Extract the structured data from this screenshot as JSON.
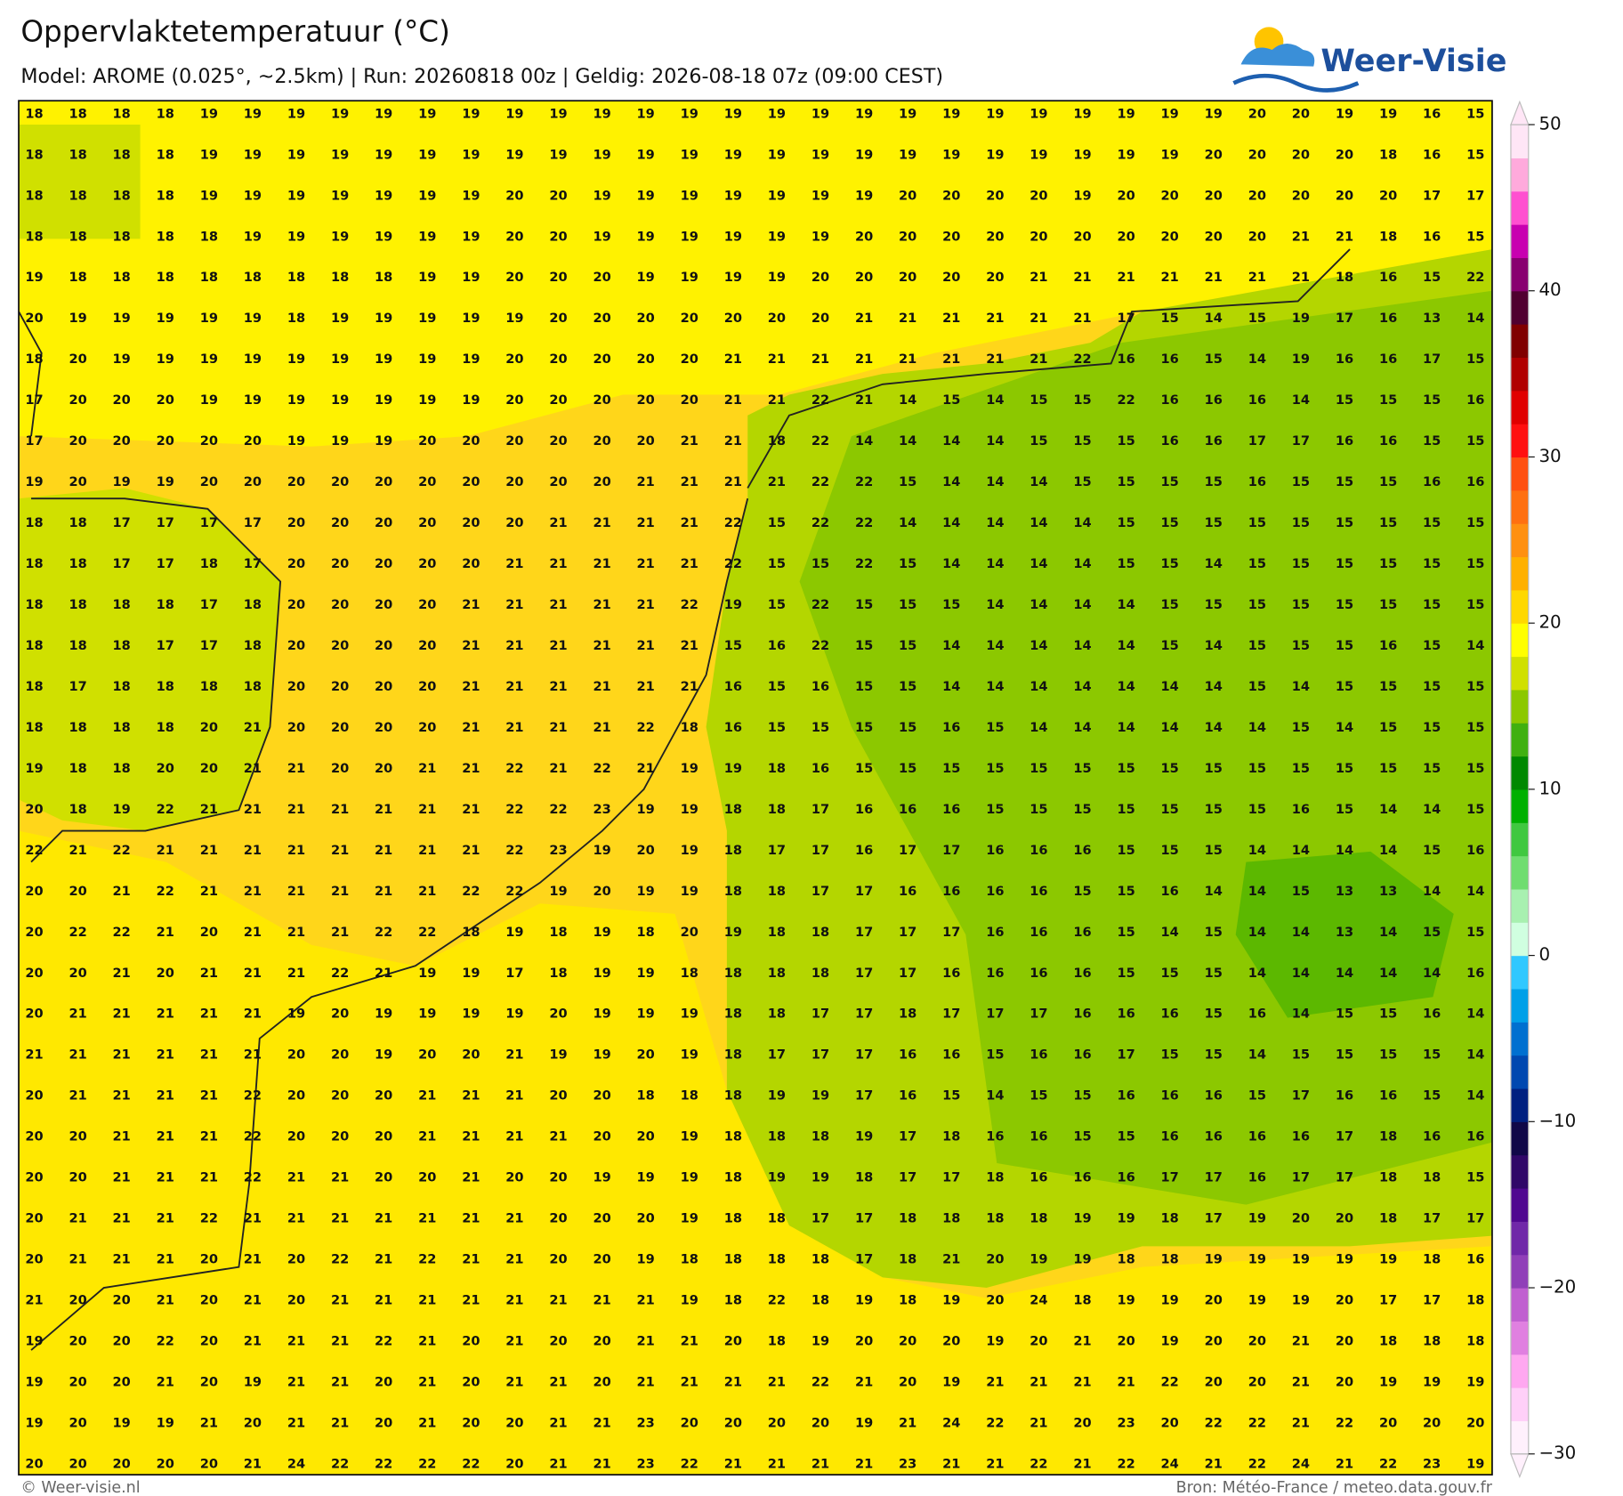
{
  "header": {
    "title": "Oppervlaktetemperatuur (°C)",
    "subtitle": "Model: AROME (0.025°, ~2.5km)  |  Run: 20260818 00z  |  Geldig: 2026-08-18 07z (09:00 CEST)",
    "logo": "Weer-Visie"
  },
  "map": {
    "values": [
      [
        18,
        18,
        18,
        18,
        19,
        19,
        19,
        19,
        19,
        19,
        19,
        19,
        19,
        19,
        19,
        19,
        19,
        19,
        19,
        19,
        19,
        19,
        19,
        19,
        19,
        19,
        19,
        19,
        20,
        20,
        19,
        19,
        16,
        15
      ],
      [
        18,
        18,
        18,
        18,
        19,
        19,
        19,
        19,
        19,
        19,
        19,
        19,
        19,
        19,
        19,
        19,
        19,
        19,
        19,
        19,
        19,
        19,
        19,
        19,
        19,
        19,
        19,
        20,
        20,
        20,
        20,
        18,
        16,
        15
      ],
      [
        18,
        18,
        18,
        18,
        19,
        19,
        19,
        19,
        19,
        19,
        19,
        20,
        20,
        19,
        19,
        19,
        19,
        19,
        19,
        19,
        20,
        20,
        20,
        20,
        19,
        20,
        20,
        20,
        20,
        20,
        20,
        20,
        17,
        17
      ],
      [
        18,
        18,
        18,
        18,
        18,
        19,
        19,
        19,
        19,
        19,
        19,
        20,
        20,
        19,
        19,
        19,
        19,
        19,
        19,
        20,
        20,
        20,
        20,
        20,
        20,
        20,
        20,
        20,
        20,
        21,
        21,
        18,
        16,
        15
      ],
      [
        19,
        18,
        18,
        18,
        18,
        18,
        18,
        18,
        18,
        19,
        19,
        20,
        20,
        20,
        19,
        19,
        19,
        19,
        20,
        20,
        20,
        20,
        20,
        21,
        21,
        21,
        21,
        21,
        21,
        21,
        18,
        16,
        15,
        22
      ],
      [
        20,
        19,
        19,
        19,
        19,
        19,
        18,
        19,
        19,
        19,
        19,
        19,
        20,
        20,
        20,
        20,
        20,
        20,
        20,
        21,
        21,
        21,
        21,
        21,
        21,
        17,
        15,
        14,
        15,
        19,
        17,
        16,
        13,
        14
      ],
      [
        18,
        20,
        19,
        19,
        19,
        19,
        19,
        19,
        19,
        19,
        19,
        20,
        20,
        20,
        20,
        20,
        21,
        21,
        21,
        21,
        21,
        21,
        21,
        21,
        22,
        16,
        16,
        15,
        14,
        19,
        16,
        16,
        17,
        15
      ],
      [
        17,
        20,
        20,
        20,
        19,
        19,
        19,
        19,
        19,
        19,
        19,
        20,
        20,
        20,
        20,
        20,
        21,
        21,
        22,
        21,
        14,
        15,
        14,
        15,
        15,
        22,
        16,
        16,
        16,
        14,
        15,
        15,
        15,
        16
      ],
      [
        17,
        20,
        20,
        20,
        20,
        20,
        19,
        19,
        19,
        20,
        20,
        20,
        20,
        20,
        20,
        21,
        21,
        18,
        22,
        14,
        14,
        14,
        14,
        15,
        15,
        15,
        16,
        16,
        17,
        17,
        16,
        16,
        15,
        15
      ],
      [
        19,
        20,
        19,
        19,
        20,
        20,
        20,
        20,
        20,
        20,
        20,
        20,
        20,
        20,
        21,
        21,
        21,
        21,
        22,
        22,
        15,
        14,
        14,
        14,
        15,
        15,
        15,
        15,
        16,
        15,
        15,
        15,
        16,
        16
      ],
      [
        18,
        18,
        17,
        17,
        17,
        17,
        20,
        20,
        20,
        20,
        20,
        20,
        21,
        21,
        21,
        21,
        22,
        15,
        22,
        22,
        14,
        14,
        14,
        14,
        14,
        15,
        15,
        15,
        15,
        15,
        15,
        15,
        15,
        15
      ],
      [
        18,
        18,
        17,
        17,
        18,
        17,
        20,
        20,
        20,
        20,
        20,
        21,
        21,
        21,
        21,
        21,
        22,
        15,
        15,
        22,
        15,
        14,
        14,
        14,
        14,
        15,
        15,
        14,
        15,
        15,
        15,
        15,
        15,
        15
      ],
      [
        18,
        18,
        18,
        18,
        17,
        18,
        20,
        20,
        20,
        20,
        21,
        21,
        21,
        21,
        21,
        22,
        19,
        15,
        22,
        15,
        15,
        15,
        14,
        14,
        14,
        14,
        15,
        15,
        15,
        15,
        15,
        15,
        15,
        15
      ],
      [
        18,
        18,
        18,
        17,
        17,
        18,
        20,
        20,
        20,
        20,
        21,
        21,
        21,
        21,
        21,
        21,
        15,
        16,
        22,
        15,
        15,
        14,
        14,
        14,
        14,
        14,
        15,
        14,
        15,
        15,
        15,
        16,
        15,
        14
      ],
      [
        18,
        17,
        18,
        18,
        18,
        18,
        20,
        20,
        20,
        20,
        21,
        21,
        21,
        21,
        21,
        21,
        16,
        15,
        16,
        15,
        15,
        14,
        14,
        14,
        14,
        14,
        14,
        14,
        15,
        14,
        15,
        15,
        15,
        15
      ],
      [
        18,
        18,
        18,
        18,
        20,
        21,
        20,
        20,
        20,
        20,
        21,
        21,
        21,
        21,
        22,
        18,
        16,
        15,
        15,
        15,
        15,
        16,
        15,
        14,
        14,
        14,
        14,
        14,
        14,
        15,
        14,
        15,
        15,
        15
      ],
      [
        19,
        18,
        18,
        20,
        20,
        21,
        21,
        20,
        20,
        21,
        21,
        22,
        21,
        22,
        21,
        19,
        19,
        18,
        16,
        15,
        15,
        15,
        15,
        15,
        15,
        15,
        15,
        15,
        15,
        15,
        15,
        15,
        15,
        15
      ],
      [
        20,
        18,
        19,
        22,
        21,
        21,
        21,
        21,
        21,
        21,
        21,
        22,
        22,
        23,
        19,
        19,
        18,
        18,
        17,
        16,
        16,
        16,
        15,
        15,
        15,
        15,
        15,
        15,
        15,
        16,
        15,
        14,
        14,
        15
      ],
      [
        22,
        21,
        22,
        21,
        21,
        21,
        21,
        21,
        21,
        21,
        21,
        22,
        23,
        19,
        20,
        19,
        18,
        17,
        17,
        16,
        17,
        17,
        16,
        16,
        16,
        15,
        15,
        15,
        14,
        14,
        14,
        14,
        15,
        16
      ],
      [
        20,
        20,
        21,
        22,
        21,
        21,
        21,
        21,
        21,
        21,
        22,
        22,
        19,
        20,
        19,
        19,
        18,
        18,
        17,
        17,
        16,
        16,
        16,
        16,
        15,
        15,
        16,
        14,
        14,
        15,
        13,
        13,
        14,
        14
      ],
      [
        20,
        22,
        22,
        21,
        20,
        21,
        21,
        21,
        22,
        22,
        18,
        19,
        18,
        19,
        18,
        20,
        19,
        18,
        18,
        17,
        17,
        17,
        16,
        16,
        16,
        15,
        14,
        15,
        14,
        14,
        13,
        14,
        15,
        15
      ],
      [
        20,
        20,
        21,
        20,
        21,
        21,
        21,
        22,
        21,
        19,
        19,
        17,
        18,
        19,
        19,
        18,
        18,
        18,
        18,
        17,
        17,
        16,
        16,
        16,
        16,
        15,
        15,
        15,
        14,
        14,
        14,
        14,
        14,
        16
      ],
      [
        20,
        21,
        21,
        21,
        21,
        21,
        19,
        20,
        19,
        19,
        19,
        19,
        20,
        19,
        19,
        19,
        18,
        18,
        17,
        17,
        18,
        17,
        17,
        17,
        16,
        16,
        16,
        15,
        16,
        14,
        15,
        15,
        16,
        14
      ],
      [
        21,
        21,
        21,
        21,
        21,
        21,
        20,
        20,
        19,
        20,
        20,
        21,
        19,
        19,
        20,
        19,
        18,
        17,
        17,
        17,
        16,
        16,
        15,
        16,
        16,
        17,
        15,
        15,
        14,
        15,
        15,
        15,
        15,
        14
      ],
      [
        20,
        21,
        21,
        21,
        21,
        22,
        20,
        20,
        20,
        21,
        21,
        21,
        20,
        20,
        18,
        18,
        18,
        19,
        19,
        17,
        16,
        15,
        14,
        15,
        15,
        16,
        16,
        16,
        15,
        17,
        16,
        16,
        15,
        14
      ],
      [
        20,
        20,
        21,
        21,
        21,
        22,
        20,
        20,
        20,
        21,
        21,
        21,
        21,
        20,
        20,
        19,
        18,
        18,
        18,
        19,
        17,
        18,
        16,
        16,
        15,
        15,
        16,
        16,
        16,
        16,
        17,
        18,
        16,
        16
      ],
      [
        20,
        20,
        21,
        21,
        21,
        22,
        21,
        21,
        20,
        20,
        21,
        20,
        20,
        19,
        19,
        19,
        18,
        19,
        19,
        18,
        17,
        17,
        18,
        16,
        16,
        16,
        17,
        17,
        16,
        17,
        17,
        18,
        18,
        15
      ],
      [
        20,
        21,
        21,
        21,
        22,
        21,
        21,
        21,
        21,
        21,
        21,
        21,
        20,
        20,
        20,
        19,
        18,
        18,
        17,
        17,
        18,
        18,
        18,
        18,
        19,
        19,
        18,
        17,
        19,
        20,
        20,
        18,
        17,
        17
      ],
      [
        20,
        21,
        21,
        21,
        20,
        21,
        20,
        22,
        21,
        22,
        21,
        21,
        20,
        20,
        19,
        18,
        18,
        18,
        18,
        17,
        18,
        21,
        20,
        19,
        19,
        18,
        18,
        19,
        19,
        19,
        19,
        19,
        18,
        16
      ],
      [
        21,
        20,
        20,
        21,
        20,
        21,
        20,
        21,
        21,
        21,
        21,
        21,
        21,
        21,
        21,
        19,
        18,
        22,
        18,
        19,
        18,
        19,
        20,
        24,
        18,
        19,
        19,
        20,
        19,
        19,
        20,
        17,
        17,
        18
      ],
      [
        19,
        20,
        20,
        22,
        20,
        21,
        21,
        21,
        22,
        21,
        20,
        21,
        20,
        20,
        21,
        21,
        20,
        18,
        19,
        20,
        20,
        20,
        19,
        20,
        21,
        20,
        19,
        20,
        20,
        21,
        20,
        18,
        18,
        18
      ],
      [
        19,
        20,
        20,
        21,
        20,
        19,
        21,
        21,
        20,
        21,
        20,
        21,
        21,
        20,
        21,
        21,
        21,
        21,
        22,
        21,
        20,
        19,
        21,
        21,
        21,
        21,
        22,
        20,
        20,
        21,
        20,
        19,
        19,
        19
      ],
      [
        19,
        20,
        19,
        19,
        21,
        20,
        21,
        21,
        20,
        21,
        20,
        20,
        21,
        21,
        23,
        20,
        20,
        20,
        20,
        19,
        21,
        24,
        22,
        21,
        20,
        23,
        20,
        22,
        22,
        21,
        22,
        20,
        20,
        20
      ],
      [
        20,
        20,
        20,
        20,
        20,
        21,
        24,
        22,
        22,
        22,
        22,
        20,
        21,
        21,
        23,
        22,
        21,
        21,
        21,
        21,
        23,
        21,
        21,
        22,
        21,
        22,
        24,
        21,
        22,
        24,
        21,
        22,
        23,
        19
      ]
    ]
  },
  "colorbar": {
    "lim": [
      -30,
      50
    ],
    "ticks": [
      {
        "value": -30,
        "label": "−30"
      },
      {
        "value": -20,
        "label": "−20"
      },
      {
        "value": -10,
        "label": "−10"
      },
      0,
      10,
      20,
      30,
      40,
      50
    ],
    "colors": [
      "#fff0fc",
      "#ffd0f8",
      "#ffa8f0",
      "#e080e0",
      "#c060d0",
      "#9040b8",
      "#7028a8",
      "#500890",
      "#300868",
      "#100848",
      "#002080",
      "#0048b0",
      "#0070d0",
      "#00a0e8",
      "#30c8ff",
      "#d0ffe0",
      "#a8f0b0",
      "#70dd70",
      "#40c840",
      "#00b000",
      "#008800",
      "#40b010",
      "#8cc800",
      "#d0e000",
      "#ffff00",
      "#ffd800",
      "#ffb000",
      "#ff9010",
      "#ff7010",
      "#ff5010",
      "#ff1010",
      "#e00000",
      "#b00000",
      "#800000",
      "#500030",
      "#880070",
      "#c800b0",
      "#ff50d0",
      "#ffaadc",
      "#ffe6f6"
    ]
  },
  "footer": {
    "credit": "© Weer-visie.nl",
    "source": "Bron: Météo-France / meteo.data.gouv.fr"
  }
}
